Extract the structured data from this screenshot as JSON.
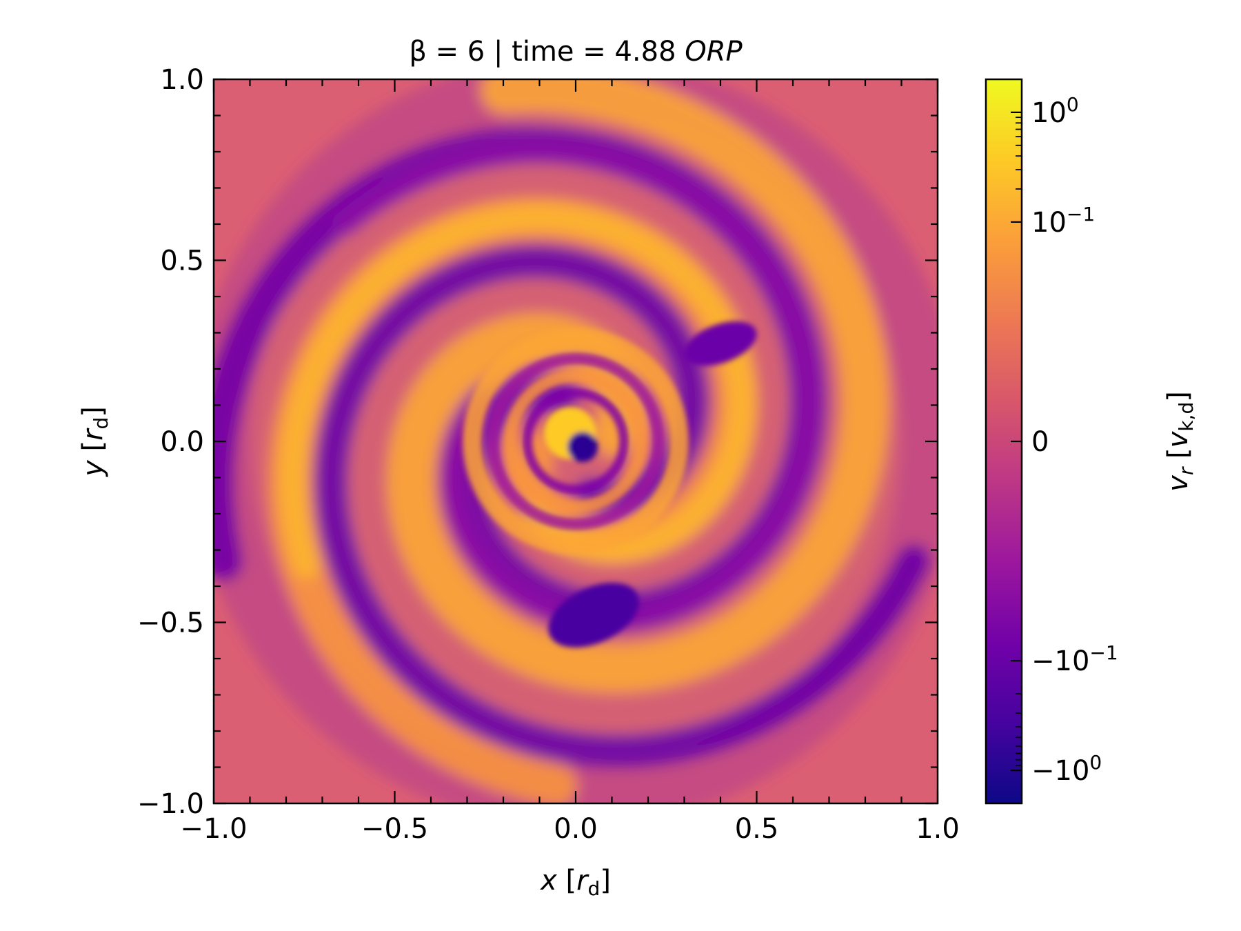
{
  "chart_data": {
    "type": "heatmap",
    "title": {
      "prefix": "β = 6 | time = 4.88 ",
      "italic": "ORP"
    },
    "xlabel": {
      "var": "x",
      "open": " [",
      "sub_var": "r",
      "sub": "d",
      "close": "]"
    },
    "ylabel": {
      "var": "y",
      "open": " [",
      "sub_var": "r",
      "sub": "d",
      "close": "]"
    },
    "xlim": [
      -1.0,
      1.0
    ],
    "ylim": [
      -1.0,
      1.0
    ],
    "x_ticks": [
      "−1.0",
      "−0.5",
      "0.0",
      "0.5",
      "1.0"
    ],
    "y_ticks": [
      "−1.0",
      "−0.5",
      "0.0",
      "0.5",
      "1.0"
    ],
    "grid": false,
    "colormap": "plasma",
    "colorbar": {
      "scale": "symlog",
      "range": [
        -2.0,
        2.0
      ],
      "linthresh": 0.01,
      "label": {
        "var": "v",
        "var_sub": "r",
        "open": " [",
        "sub_var": "v",
        "sub": "k,d",
        "close": "]"
      },
      "ticks": [
        {
          "value": 1.0,
          "base": "10",
          "exp": "0"
        },
        {
          "value": 0.1,
          "base": "10",
          "exp": "−1"
        },
        {
          "value": 0,
          "base": "0",
          "exp": ""
        },
        {
          "value": -0.1,
          "base": "−10",
          "exp": "−1"
        },
        {
          "value": -1.0,
          "base": "−10",
          "exp": "0"
        }
      ]
    },
    "field_description": "spiral pattern of alternating outflow and inflow bands around the centre"
  },
  "colors": {
    "plasma": [
      "#0d0887",
      "#46039f",
      "#7201a8",
      "#9c179e",
      "#bd3786",
      "#d8576b",
      "#ed7953",
      "#fb9f3a",
      "#fdca26",
      "#f0f921"
    ]
  }
}
